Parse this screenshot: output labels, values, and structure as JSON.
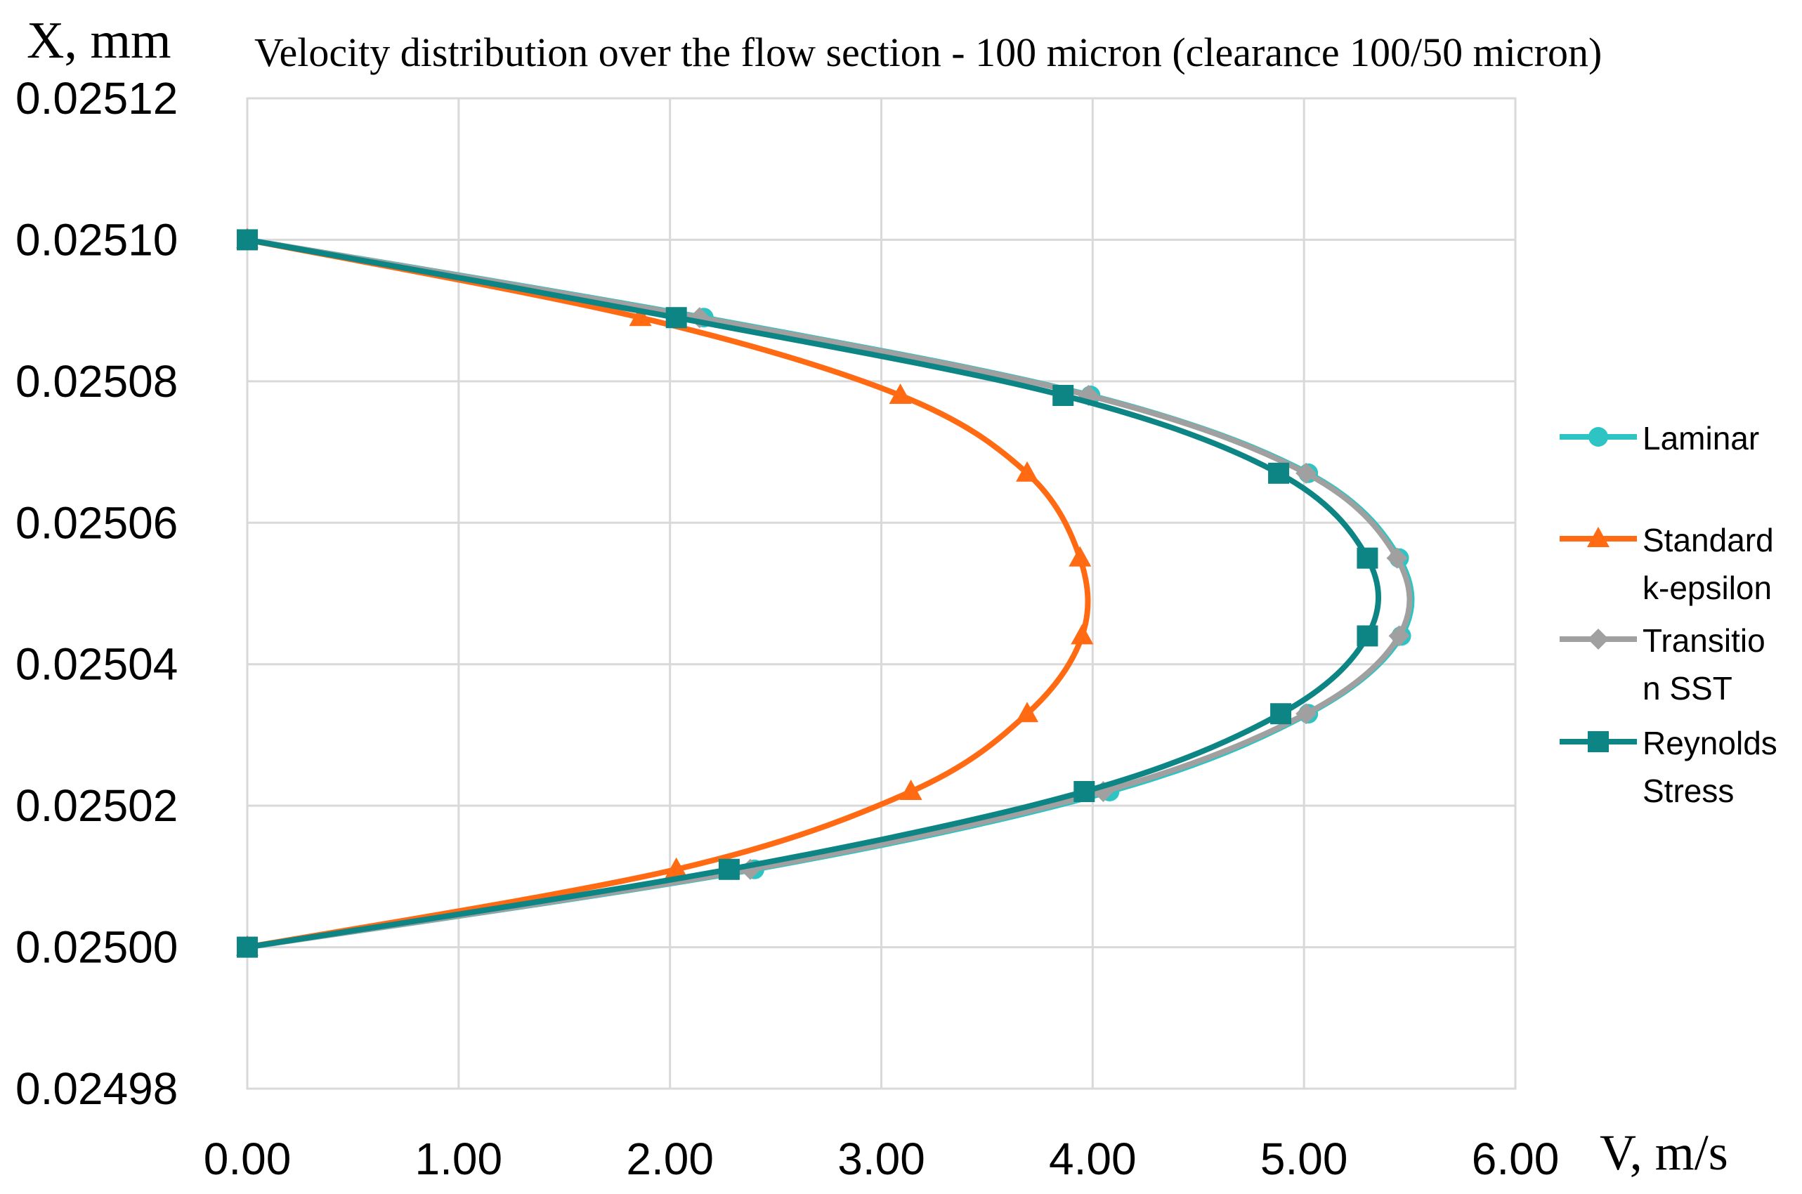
{
  "chart_data": {
    "type": "scatter",
    "title": "Velocity distribution over the flow section - 100 micron (clearance 100/50 micron)",
    "xlabel": "V, m/s",
    "ylabel": "X, mm",
    "xlim": [
      0,
      6
    ],
    "ylim": [
      0.02498,
      0.02512
    ],
    "x_ticks": [
      "0.00",
      "1.00",
      "2.00",
      "3.00",
      "4.00",
      "5.00",
      "6.00"
    ],
    "y_ticks": [
      "0.02498",
      "0.02500",
      "0.02502",
      "0.02504",
      "0.02506",
      "0.02508",
      "0.02510",
      "0.02512"
    ],
    "grid": true,
    "legend_position": "right",
    "series": [
      {
        "name": "Laminar",
        "color": "#2ec4c4",
        "marker": "circle",
        "points": [
          [
            0,
            0.0251
          ],
          [
            2.16,
            0.025089
          ],
          [
            3.99,
            0.025078
          ],
          [
            5.02,
            0.025067
          ],
          [
            5.45,
            0.025055
          ],
          [
            5.46,
            0.025044
          ],
          [
            5.02,
            0.025033
          ],
          [
            4.08,
            0.025022
          ],
          [
            2.4,
            0.025011
          ],
          [
            0,
            0.025
          ]
        ]
      },
      {
        "name": "Standard k-epsilon",
        "color": "#ff6a13",
        "marker": "triangle",
        "points": [
          [
            0,
            0.0251
          ],
          [
            1.86,
            0.025089
          ],
          [
            3.09,
            0.025078
          ],
          [
            3.69,
            0.025067
          ],
          [
            3.94,
            0.025055
          ],
          [
            3.95,
            0.025044
          ],
          [
            3.69,
            0.025033
          ],
          [
            3.14,
            0.025022
          ],
          [
            2.03,
            0.025011
          ],
          [
            0,
            0.025
          ]
        ]
      },
      {
        "name": "Transition SST",
        "color": "#a0a0a0",
        "marker": "diamond",
        "points": [
          [
            0,
            0.0251
          ],
          [
            2.14,
            0.025089
          ],
          [
            3.98,
            0.025078
          ],
          [
            5.01,
            0.025067
          ],
          [
            5.44,
            0.025055
          ],
          [
            5.45,
            0.025044
          ],
          [
            5.01,
            0.025033
          ],
          [
            4.05,
            0.025022
          ],
          [
            2.38,
            0.025011
          ],
          [
            0,
            0.025
          ]
        ]
      },
      {
        "name": "Reynolds Stress",
        "color": "#0e8585",
        "marker": "square",
        "points": [
          [
            0,
            0.0251
          ],
          [
            2.03,
            0.025089
          ],
          [
            3.86,
            0.025078
          ],
          [
            4.88,
            0.025067
          ],
          [
            5.3,
            0.025055
          ],
          [
            5.3,
            0.025044
          ],
          [
            4.89,
            0.025033
          ],
          [
            3.96,
            0.025022
          ],
          [
            2.28,
            0.025011
          ],
          [
            0,
            0.025
          ]
        ]
      }
    ],
    "legend": [
      {
        "lines": [
          "Laminar"
        ]
      },
      {
        "lines": [
          "Standard",
          "k-epsilon"
        ]
      },
      {
        "lines": [
          "Transitio",
          "n SST"
        ]
      },
      {
        "lines": [
          "Reynolds",
          "Stress"
        ]
      }
    ]
  }
}
